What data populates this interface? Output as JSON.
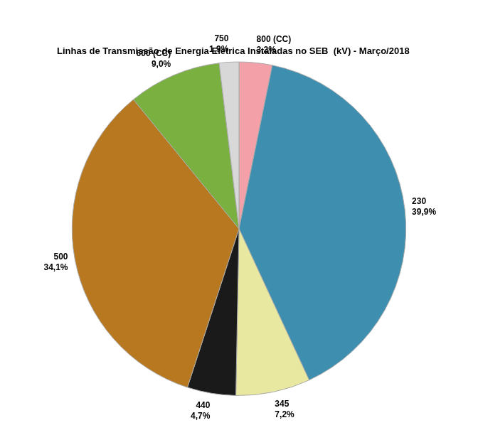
{
  "chart_data": {
    "type": "pie",
    "title": "Linhas de Transmissão de Energia Elétrica Instaladas no SEB  (kV) - Março/2018",
    "categories": [
      "800 (CC)",
      "230",
      "345",
      "440",
      "500",
      "600 (CC)",
      "750"
    ],
    "values": [
      3.2,
      39.9,
      7.2,
      4.7,
      34.1,
      9.0,
      1.9
    ],
    "value_labels": [
      "3,2%",
      "39,9%",
      "7,2%",
      "4,7%",
      "34,1%",
      "9,0%",
      "1,9%"
    ],
    "colors": [
      "#f4a0a8",
      "#3d8eaf",
      "#e8e8a0",
      "#1a1a1a",
      "#b87820",
      "#7ab040",
      "#d8d8d8"
    ],
    "data_labels": true
  }
}
